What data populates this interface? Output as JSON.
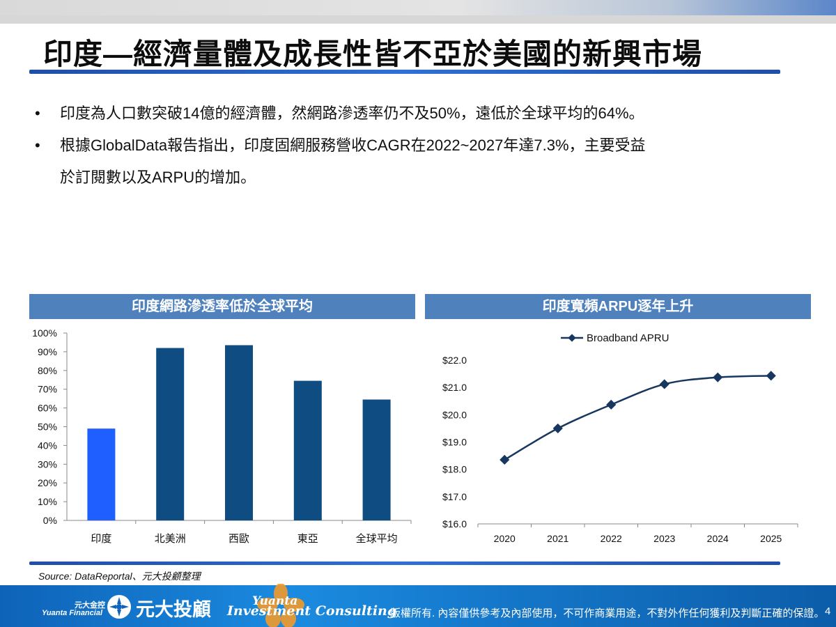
{
  "slide": {
    "title": "印度—經濟量體及成長性皆不亞於美國的新興市場",
    "bullets": [
      "印度為人口數突破14億的經濟體，然網路滲透率仍不及50%，遠低於全球平均的64%。",
      "根據GlobalData報告指出，印度固網服務營收CAGR在2022~2027年達7.3%，主要受益\n於訂閱數以及ARPU的增加。"
    ],
    "bullet_symbol": "•",
    "source": "Source: DataReportal、元大投顧整理"
  },
  "footer": {
    "company_cn_small": "元大金控",
    "company_en_small": "Yuanta Financial",
    "logo_text": "元大投顧",
    "script_logo": "Yuanta",
    "consulting_text": "Investment Consulting",
    "disclaimer": "版權所有. 內容僅供參考及內部使用，不可作商業用途，不對外作任何獲利及判斷正確的保證。",
    "page_number": "4"
  },
  "colors": {
    "header_fill": "#4f81bd",
    "bar_primary": "#0f4c81",
    "bar_highlight": "#1f5fff",
    "line": "#17375e",
    "footer_blue": "#1577c9"
  },
  "chart_data": [
    {
      "type": "bar",
      "title": "印度網路滲透率低於全球平均",
      "categories": [
        "印度",
        "北美洲",
        "西歐",
        "東亞",
        "全球平均"
      ],
      "values": [
        49,
        92,
        93.5,
        74.5,
        64.5
      ],
      "highlight_index": 0,
      "ylim": [
        0,
        100
      ],
      "yticks": [
        "0%",
        "10%",
        "20%",
        "30%",
        "40%",
        "50%",
        "60%",
        "70%",
        "80%",
        "90%",
        "100%"
      ],
      "grid": false,
      "legend": "none"
    },
    {
      "type": "line",
      "title": "印度寬頻ARPU逐年上升",
      "x": [
        "2020",
        "2021",
        "2022",
        "2023",
        "2024",
        "2025"
      ],
      "series": [
        {
          "name": "Broadband APRU",
          "values": [
            18.35,
            19.5,
            20.37,
            21.12,
            21.37,
            21.43
          ]
        }
      ],
      "ylim": [
        16.0,
        22.0
      ],
      "yticks": [
        "$16.0",
        "$17.0",
        "$18.0",
        "$19.0",
        "$20.0",
        "$21.0",
        "$22.0"
      ],
      "grid": false,
      "legend": "top"
    }
  ]
}
